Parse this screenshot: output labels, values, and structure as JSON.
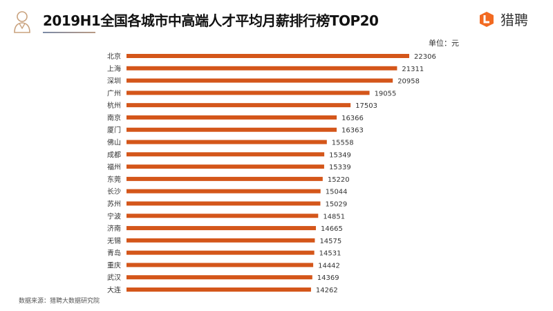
{
  "header": {
    "title": "2019H1全国各城市中高端人才平均月薪排行榜TOP20",
    "logo_text": "猎聘",
    "icon": "person-avatar-icon",
    "logo_icon": "liepin-logo-icon"
  },
  "unit_label": "单位：元",
  "source": "数据来源：猎聘大数据研究院",
  "colors": {
    "bar": "#d4561a",
    "logo": "#f26a21"
  },
  "chart_data": {
    "type": "bar",
    "orientation": "horizontal",
    "categories": [
      "北京",
      "上海",
      "深圳",
      "广州",
      "杭州",
      "南京",
      "厦门",
      "佛山",
      "成都",
      "福州",
      "东莞",
      "长沙",
      "苏州",
      "宁波",
      "济南",
      "无锡",
      "青岛",
      "重庆",
      "武汉",
      "大连"
    ],
    "values": [
      22306,
      21311,
      20958,
      19055,
      17503,
      16366,
      16363,
      15558,
      15349,
      15339,
      15220,
      15044,
      15029,
      14851,
      14665,
      14575,
      14531,
      14442,
      14369,
      14262
    ],
    "title": "2019H1全国各城市中高端人才平均月薪排行榜TOP20",
    "unit": "元",
    "grid": false,
    "data_labels": true
  }
}
